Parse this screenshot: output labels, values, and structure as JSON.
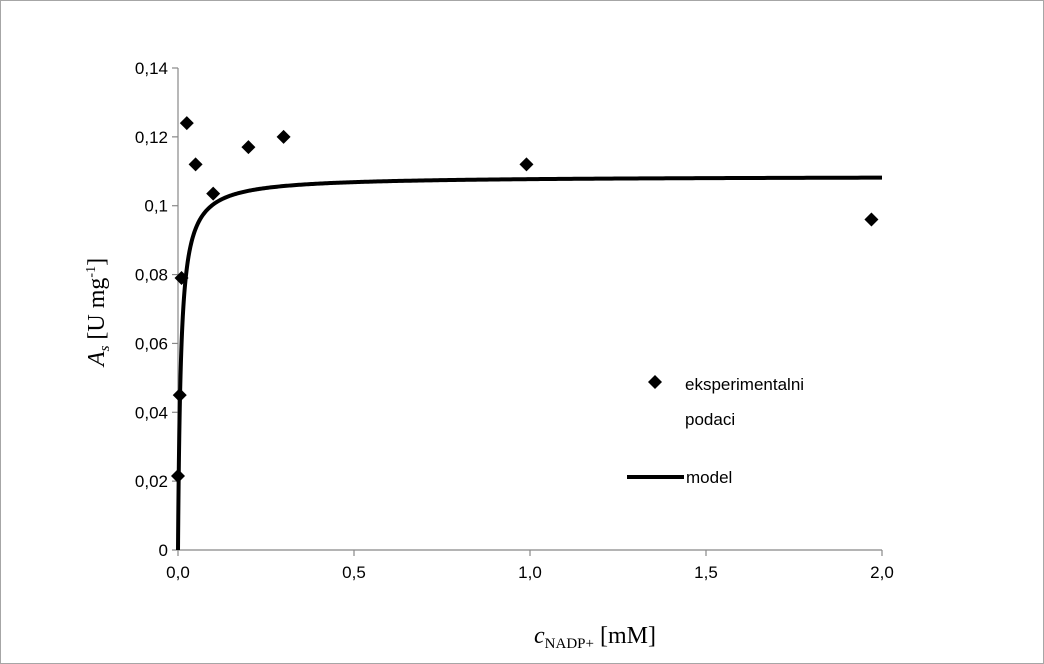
{
  "chart_data": {
    "type": "scatter",
    "xlim": [
      0,
      2.0
    ],
    "ylim": [
      0,
      0.14
    ],
    "x_ticks": [
      "0,0",
      "0,5",
      "1,0",
      "1,5",
      "2,0"
    ],
    "y_ticks": [
      "0",
      "0,02",
      "0,04",
      "0,06",
      "0,08",
      "0,1",
      "0,12",
      "0,14"
    ],
    "x_tick_values": [
      0,
      0.5,
      1.0,
      1.5,
      2.0
    ],
    "y_tick_values": [
      0,
      0.02,
      0.04,
      0.06,
      0.08,
      0.1,
      0.12,
      0.14
    ],
    "xlabel": {
      "main": "c",
      "sub": "NADP+",
      "rest": " [mM]"
    },
    "ylabel": {
      "main": "A",
      "sub": "s",
      "mid": " [U mg",
      "sup": "-1",
      "end": "]"
    },
    "grid": false,
    "legend_position": "right",
    "series": [
      {
        "name": "eksperimentalni podaci",
        "name_lines": [
          "eksperimentalni",
          "podaci"
        ],
        "kind": "scatter",
        "marker": "diamond",
        "color": "#000000",
        "points": [
          {
            "x": 0.0,
            "y": 0.0215
          },
          {
            "x": 0.005,
            "y": 0.045
          },
          {
            "x": 0.01,
            "y": 0.079
          },
          {
            "x": 0.025,
            "y": 0.124
          },
          {
            "x": 0.05,
            "y": 0.112
          },
          {
            "x": 0.1,
            "y": 0.1035
          },
          {
            "x": 0.2,
            "y": 0.117
          },
          {
            "x": 0.3,
            "y": 0.12
          },
          {
            "x": 0.99,
            "y": 0.112
          },
          {
            "x": 1.97,
            "y": 0.096
          }
        ]
      },
      {
        "name": "model",
        "kind": "line",
        "color": "#000000",
        "model": {
          "vmax": 0.1086,
          "km": 0.0082
        }
      }
    ]
  }
}
